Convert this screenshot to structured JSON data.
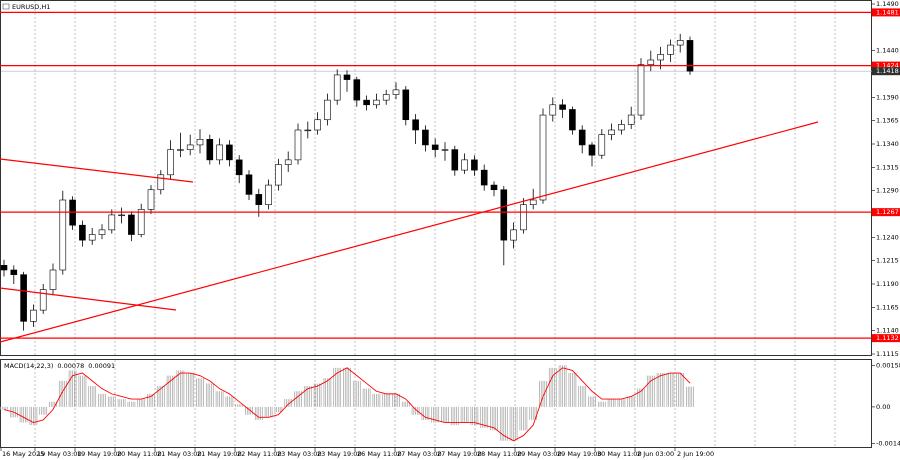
{
  "chart_data": [
    {
      "type": "candlestick",
      "title": "EURUSD,H1",
      "x_labels": [
        "16 May 2025",
        "19 May 03:00",
        "19 May 19:00",
        "20 May 11:00",
        "21 May 03:00",
        "21 May 19:00",
        "22 May 11:00",
        "23 May 03:00",
        "23 May 19:00",
        "26 May 11:00",
        "27 May 03:00",
        "27 May 19:00",
        "28 May 11:00",
        "29 May 03:00",
        "29 May 19:00",
        "30 May 11:00",
        "2 Jun 03:00",
        "2 Jun 19:00"
      ],
      "open": [
        1.121,
        1.1205,
        1.12,
        1.115,
        1.1162,
        1.1184,
        1.1205,
        1.128,
        1.1253,
        1.1237,
        1.1243,
        1.1248,
        1.1264,
        1.1264,
        1.1243,
        1.127,
        1.1291,
        1.1307,
        1.1334,
        1.1334,
        1.1339,
        1.1345,
        1.1323,
        1.1339,
        1.1323,
        1.1307,
        1.1286,
        1.1275,
        1.1296,
        1.1318,
        1.1323,
        1.1355,
        1.1355,
        1.1366,
        1.1387,
        1.1414,
        1.1409,
        1.1387,
        1.1382,
        1.1387,
        1.1393,
        1.1398,
        1.1366,
        1.1355,
        1.1339,
        1.1334,
        1.1334,
        1.1312,
        1.1323,
        1.1312,
        1.1296,
        1.1291,
        1.1237,
        1.1248,
        1.1275,
        1.128,
        1.1371,
        1.1382,
        1.1377,
        1.1355,
        1.1339,
        1.1328,
        1.135,
        1.1355,
        1.1361,
        1.1371,
        1.1425,
        1.143,
        1.1436,
        1.1446,
        1.1451
      ],
      "high": [
        1.1216,
        1.121,
        1.1203,
        1.1168,
        1.119,
        1.1212,
        1.129,
        1.1284,
        1.1258,
        1.125,
        1.1254,
        1.127,
        1.1272,
        1.1268,
        1.1276,
        1.1296,
        1.1312,
        1.1344,
        1.1352,
        1.135,
        1.1356,
        1.135,
        1.1346,
        1.1344,
        1.1328,
        1.1312,
        1.1292,
        1.1302,
        1.1324,
        1.1332,
        1.1362,
        1.1364,
        1.1374,
        1.1394,
        1.142,
        1.1419,
        1.1412,
        1.1392,
        1.1394,
        1.1398,
        1.1406,
        1.1402,
        1.1372,
        1.136,
        1.1346,
        1.1342,
        1.1338,
        1.133,
        1.1328,
        1.1318,
        1.13,
        1.1295,
        1.1256,
        1.1282,
        1.1292,
        1.1378,
        1.139,
        1.1388,
        1.138,
        1.136,
        1.1342,
        1.1356,
        1.1362,
        1.1366,
        1.138,
        1.1432,
        1.144,
        1.1444,
        1.1452,
        1.1458,
        1.1455
      ],
      "low": [
        1.1198,
        1.119,
        1.114,
        1.1144,
        1.1158,
        1.1178,
        1.12,
        1.1248,
        1.123,
        1.1232,
        1.1238,
        1.1244,
        1.1255,
        1.1236,
        1.124,
        1.1265,
        1.1286,
        1.1302,
        1.1326,
        1.1328,
        1.133,
        1.1318,
        1.1318,
        1.1316,
        1.1298,
        1.128,
        1.1262,
        1.127,
        1.129,
        1.131,
        1.1318,
        1.1346,
        1.135,
        1.136,
        1.1382,
        1.1396,
        1.138,
        1.1376,
        1.1378,
        1.1382,
        1.1388,
        1.136,
        1.134,
        1.1332,
        1.1326,
        1.1322,
        1.1306,
        1.1308,
        1.1306,
        1.129,
        1.1284,
        1.121,
        1.1228,
        1.1244,
        1.127,
        1.1276,
        1.1364,
        1.1368,
        1.135,
        1.133,
        1.1316,
        1.1324,
        1.1344,
        1.135,
        1.1356,
        1.1366,
        1.1418,
        1.142,
        1.1428,
        1.1438,
        1.1414
      ],
      "close": [
        1.1205,
        1.12,
        1.115,
        1.1162,
        1.1184,
        1.1205,
        1.128,
        1.1253,
        1.1237,
        1.1243,
        1.1248,
        1.1264,
        1.1264,
        1.1243,
        1.127,
        1.1291,
        1.1307,
        1.1334,
        1.1334,
        1.1339,
        1.1345,
        1.1323,
        1.1339,
        1.1323,
        1.1307,
        1.1286,
        1.1275,
        1.1296,
        1.1318,
        1.1323,
        1.1355,
        1.1355,
        1.1366,
        1.1387,
        1.1414,
        1.1409,
        1.1387,
        1.1382,
        1.1387,
        1.1393,
        1.1398,
        1.1366,
        1.1355,
        1.1339,
        1.1334,
        1.1334,
        1.1312,
        1.1323,
        1.1312,
        1.1296,
        1.1291,
        1.1237,
        1.1248,
        1.1275,
        1.128,
        1.1371,
        1.1382,
        1.1377,
        1.1355,
        1.1339,
        1.1328,
        1.135,
        1.1355,
        1.1361,
        1.1371,
        1.1425,
        1.143,
        1.1436,
        1.1446,
        1.1451,
        1.1418
      ],
      "ylim": [
        1.1115,
        1.149
      ],
      "yticks": [
        {
          "value": 1.149,
          "label": "1.1490"
        },
        {
          "value": 1.144,
          "label": "1.1440"
        },
        {
          "value": 1.139,
          "label": "1.1390"
        },
        1.1365,
        {
          "value": 1.134,
          "label": "1.1340"
        },
        1.1315,
        {
          "value": 1.129,
          "label": "1.1290"
        },
        {
          "value": 1.124,
          "label": "1.1240"
        },
        1.1215,
        {
          "value": 1.119,
          "label": "1.1190"
        },
        1.1165,
        {
          "value": 1.114,
          "label": "1.1140"
        },
        1.1115
      ],
      "levels": [
        1.1481,
        1.1424,
        1.1267,
        1.1132
      ],
      "level_color": "#ff0000",
      "last_price": 1.1418,
      "grid": true
    },
    {
      "type": "macd",
      "title": "MACD(14,22,3)",
      "macd_value": 0.00078,
      "signal_value": 0.00091,
      "values": [
        -0.0001,
        -0.0004,
        -0.0006,
        -0.0007,
        -0.0003,
        0.0002,
        0.001,
        0.0014,
        0.0012,
        0.0008,
        0.0005,
        0.0004,
        0.0003,
        0.0002,
        0.0003,
        0.0005,
        0.0008,
        0.0012,
        0.0014,
        0.0013,
        0.0011,
        0.0009,
        0.0006,
        0.0004,
        0.0001,
        -0.0003,
        -0.0005,
        -0.0004,
        -0.0002,
        0.0003,
        0.0006,
        0.0008,
        0.0009,
        0.0011,
        0.0015,
        0.0015,
        0.001,
        0.0007,
        0.0005,
        0.0005,
        0.0005,
        0.0002,
        -0.0003,
        -0.0005,
        -0.0006,
        -0.0006,
        -0.0007,
        -0.0006,
        -0.0007,
        -0.0008,
        -0.0009,
        -0.0013,
        -0.0013,
        -0.0009,
        -0.0005,
        0.001,
        0.0015,
        0.0016,
        0.0013,
        0.0008,
        0.0004,
        0.0002,
        0.0003,
        0.0003,
        0.0004,
        0.0007,
        0.0012,
        0.0013,
        0.0013,
        0.0013,
        0.00078
      ],
      "signal": [
        -0.0001,
        -0.0002,
        -0.0004,
        -0.0006,
        -0.0005,
        -0.0001,
        0.0006,
        0.0012,
        0.0013,
        0.001,
        0.0007,
        0.0005,
        0.0004,
        0.0003,
        0.0003,
        0.0004,
        0.0007,
        0.001,
        0.0013,
        0.0013,
        0.0012,
        0.001,
        0.0007,
        0.0005,
        0.0002,
        -0.0001,
        -0.0004,
        -0.0004,
        -0.0003,
        0.0001,
        0.0004,
        0.0007,
        0.0008,
        0.001,
        0.0013,
        0.0015,
        0.0012,
        0.0009,
        0.0006,
        0.0005,
        0.0005,
        0.0003,
        -0.0001,
        -0.0004,
        -0.0005,
        -0.0006,
        -0.0006,
        -0.0006,
        -0.0006,
        -0.0007,
        -0.0008,
        -0.0011,
        -0.0013,
        -0.0011,
        -0.0007,
        0.0004,
        0.0012,
        0.0015,
        0.0014,
        0.001,
        0.0006,
        0.0003,
        0.0003,
        0.0003,
        0.0004,
        0.0006,
        0.001,
        0.0012,
        0.0013,
        0.0013,
        0.00091
      ],
      "bar_color": "#a0a0a0",
      "signal_color": "#ff0000",
      "ylim": [
        -0.0015,
        0.0018
      ],
      "yticks": [
        0.00158,
        {
          "value": 0,
          "label": "0.00"
        },
        -0.0014
      ]
    }
  ]
}
